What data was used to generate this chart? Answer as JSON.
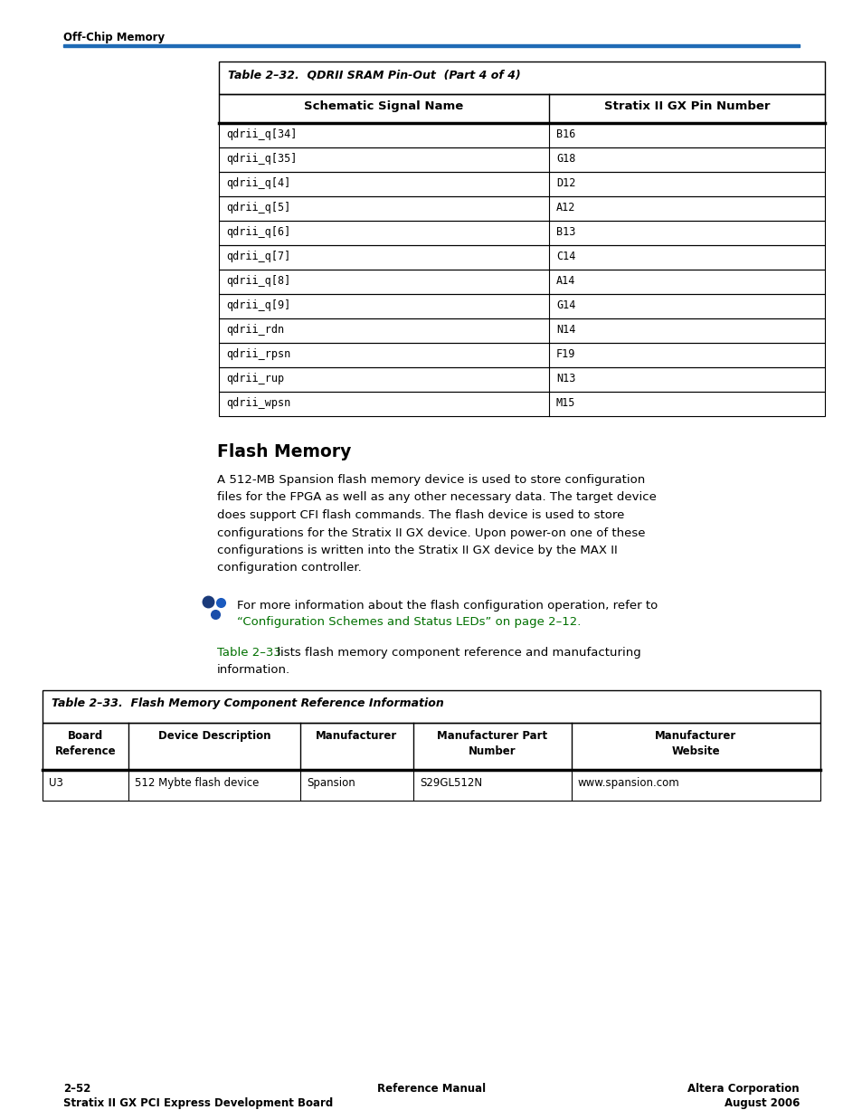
{
  "page_bg": "#ffffff",
  "header_section_label": "Off-Chip Memory",
  "header_line_color": "#1f6bb5",
  "table1_title": "Table 2–32.  QDRII SRAM Pin-Out  (Part 4 of 4)",
  "table1_headers": [
    "Schematic Signal Name",
    "Stratix II GX Pin Number"
  ],
  "table1_rows": [
    [
      "qdrii_q[34]",
      "B16"
    ],
    [
      "qdrii_q[35]",
      "G18"
    ],
    [
      "qdrii_q[4]",
      "D12"
    ],
    [
      "qdrii_q[5]",
      "A12"
    ],
    [
      "qdrii_q[6]",
      "B13"
    ],
    [
      "qdrii_q[7]",
      "C14"
    ],
    [
      "qdrii_q[8]",
      "A14"
    ],
    [
      "qdrii_q[9]",
      "G14"
    ],
    [
      "qdrii_rdn",
      "N14"
    ],
    [
      "qdrii_rpsn",
      "F19"
    ],
    [
      "qdrii_rup",
      "N13"
    ],
    [
      "qdrii_wpsn",
      "M15"
    ]
  ],
  "section_heading": "Flash Memory",
  "body_lines": [
    "A 512-MB Spansion flash memory device is used to store configuration",
    "files for the FPGA as well as any other necessary data. The target device",
    "does support CFI flash commands. The flash device is used to store",
    "configurations for the Stratix II GX device. Upon power-on one of these",
    "configurations is written into the Stratix II GX device by the MAX II",
    "configuration controller."
  ],
  "note_text": "For more information about the flash configuration operation, refer to",
  "note_link": "“Configuration Schemes and Status LEDs” on page 2–12.",
  "intro_text_part1": "Table 2–33",
  "intro_text_part2": " lists flash memory component reference and manufacturing",
  "intro_text_line2": "information.",
  "table2_title": "Table 2–33.  Flash Memory Component Reference Information",
  "table2_headers": [
    "Board\nReference",
    "Device Description",
    "Manufacturer",
    "Manufacturer Part\nNumber",
    "Manufacturer\nWebsite"
  ],
  "table2_col_widths": [
    95,
    190,
    125,
    175,
    160
  ],
  "table2_rows": [
    [
      "U3",
      "512 Mybte flash device",
      "Spansion",
      "S29GL512N",
      "www.spansion.com"
    ]
  ],
  "footer_left_top": "2–52",
  "footer_center": "Reference Manual",
  "footer_right_top": "Altera Corporation",
  "footer_left_bottom": "Stratix II GX PCI Express Development Board",
  "footer_right_bottom": "August 2006",
  "link_color": "#007000",
  "note_icon_color": "#1a4e8c",
  "note_icon_color2": "#1a6adc"
}
